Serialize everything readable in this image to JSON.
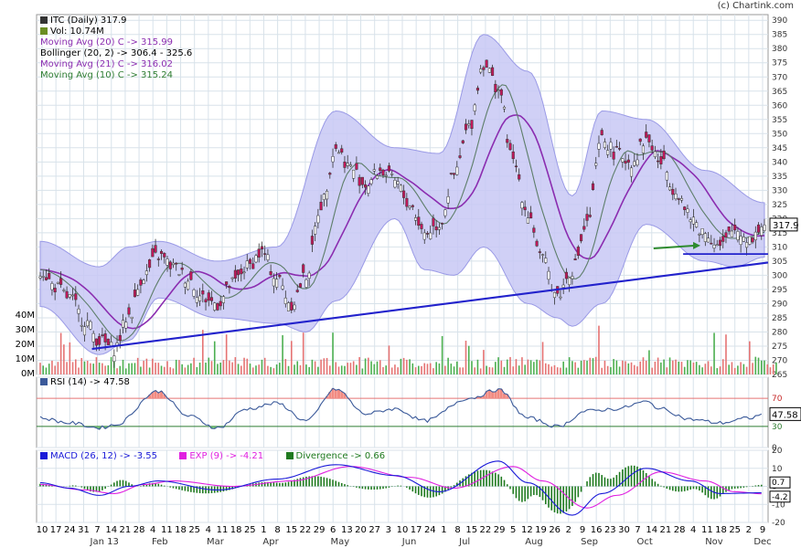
{
  "copyright": "(c) Chartink.com",
  "chart_data": [
    {
      "type": "candlestick",
      "title": "ITC (Daily) 317.9",
      "legend": [
        {
          "text": "ITC (Daily) 317.9",
          "color": "#000000"
        },
        {
          "text": "Vol: 10.74M",
          "color": "#000000"
        },
        {
          "text": "Moving Avg (20) C -> 315.99",
          "color": "#8b2db0"
        },
        {
          "text": "Bollinger (20, 2) -> 306.4 - 325.6",
          "color": "#000000"
        },
        {
          "text": "Moving Avg (21) C -> 316.02",
          "color": "#8b2db0"
        },
        {
          "text": "Moving Avg (10) C -> 315.24",
          "color": "#2e7d32"
        }
      ],
      "ylim": [
        265,
        392
      ],
      "yticks": [
        265,
        270,
        275,
        280,
        285,
        290,
        295,
        300,
        305,
        310,
        315,
        320,
        325,
        330,
        335,
        340,
        345,
        350,
        355,
        360,
        365,
        370,
        375,
        380,
        385,
        390
      ],
      "last_price_label": "317.9",
      "volume_axis_labels": [
        "40M",
        "30M",
        "20M",
        "10M",
        "0M"
      ],
      "volume_ylim": [
        0,
        40
      ],
      "x_tick_labels": [
        "10",
        "17",
        "24",
        "31",
        "7",
        "14",
        "21",
        "28",
        "4",
        "11",
        "18",
        "25",
        "4",
        "11",
        "18",
        "25",
        "1",
        "8",
        "15",
        "22",
        "29",
        "6",
        "13",
        "20",
        "27",
        "3",
        "10",
        "17",
        "24",
        "1",
        "8",
        "15",
        "22",
        "29",
        "5",
        "12",
        "19",
        "26",
        "2",
        "9",
        "16",
        "23",
        "30",
        "7",
        "14",
        "21",
        "28",
        "4",
        "11",
        "18",
        "25",
        "2",
        "9"
      ],
      "x_month_labels": [
        "Jan 13",
        "Feb",
        "Mar",
        "Apr",
        "May",
        "Jun",
        "Jul",
        "Aug",
        "Sep",
        "Oct",
        "Nov",
        "Dec"
      ],
      "weeks": 50,
      "close_keypoints": [
        [
          0,
          302
        ],
        [
          1,
          296
        ],
        [
          2,
          292
        ],
        [
          3,
          284
        ],
        [
          4,
          277
        ],
        [
          5,
          274
        ],
        [
          6,
          286
        ],
        [
          7,
          300
        ],
        [
          8,
          307
        ],
        [
          9,
          303
        ],
        [
          10,
          299
        ],
        [
          11,
          292
        ],
        [
          12,
          290
        ],
        [
          13,
          297
        ],
        [
          14,
          303
        ],
        [
          15,
          308
        ],
        [
          16,
          299
        ],
        [
          17,
          290
        ],
        [
          18,
          300
        ],
        [
          19,
          325
        ],
        [
          20,
          345
        ],
        [
          21,
          338
        ],
        [
          22,
          332
        ],
        [
          23,
          337
        ],
        [
          24,
          333
        ],
        [
          25,
          325
        ],
        [
          26,
          315
        ],
        [
          27,
          318
        ],
        [
          28,
          335
        ],
        [
          29,
          352
        ],
        [
          30,
          375
        ],
        [
          31,
          366
        ],
        [
          32,
          340
        ],
        [
          33,
          322
        ],
        [
          34,
          305
        ],
        [
          35,
          293
        ],
        [
          36,
          302
        ],
        [
          37,
          318
        ],
        [
          38,
          348
        ],
        [
          39,
          343
        ],
        [
          40,
          340
        ],
        [
          41,
          348
        ],
        [
          42,
          340
        ],
        [
          43,
          330
        ],
        [
          44,
          320
        ],
        [
          45,
          315
        ],
        [
          46,
          310
        ],
        [
          47,
          316
        ],
        [
          48,
          313
        ],
        [
          49,
          317.9
        ]
      ],
      "bollinger_upper_keypoints": [
        [
          0,
          312
        ],
        [
          4,
          303
        ],
        [
          6,
          310
        ],
        [
          8,
          312
        ],
        [
          12,
          305
        ],
        [
          16,
          310
        ],
        [
          20,
          358
        ],
        [
          24,
          345
        ],
        [
          27,
          343
        ],
        [
          30,
          385
        ],
        [
          33,
          372
        ],
        [
          36,
          328
        ],
        [
          38,
          358
        ],
        [
          41,
          355
        ],
        [
          45,
          337
        ],
        [
          49,
          325.6
        ]
      ],
      "bollinger_lower_keypoints": [
        [
          0,
          289
        ],
        [
          4,
          272
        ],
        [
          6,
          277
        ],
        [
          8,
          292
        ],
        [
          12,
          285
        ],
        [
          16,
          283
        ],
        [
          18,
          280
        ],
        [
          20,
          291
        ],
        [
          24,
          320
        ],
        [
          26,
          302
        ],
        [
          28,
          300
        ],
        [
          30,
          310
        ],
        [
          33,
          290
        ],
        [
          35,
          285
        ],
        [
          36,
          282
        ],
        [
          38,
          290
        ],
        [
          41,
          318
        ],
        [
          45,
          305
        ],
        [
          47,
          303
        ],
        [
          49,
          306.4
        ]
      ],
      "support_line": {
        "from": [
          3.5,
          274
        ],
        "to": [
          49.5,
          304.5
        ]
      },
      "horizontal_support": {
        "from": [
          39.5,
          307.5
        ],
        "to": [
          49.5,
          307.5
        ]
      },
      "arrow": {
        "from": [
          41.5,
          309.5
        ],
        "to": [
          44.3,
          310.5
        ]
      }
    },
    {
      "type": "line",
      "title": "RSI (14) -> 47.58",
      "ylim": [
        0,
        100
      ],
      "yticks": [
        0,
        30,
        70,
        100
      ],
      "ytick_labels": [
        "0",
        "30",
        "70"
      ],
      "last_value_label": "47.58",
      "overbought": 70,
      "oversold": 30,
      "keypoints": [
        [
          0,
          42
        ],
        [
          2,
          35
        ],
        [
          4,
          28
        ],
        [
          5,
          32
        ],
        [
          8,
          80
        ],
        [
          10,
          45
        ],
        [
          12,
          28
        ],
        [
          14,
          55
        ],
        [
          16,
          63
        ],
        [
          18,
          38
        ],
        [
          20,
          83
        ],
        [
          22,
          48
        ],
        [
          24,
          55
        ],
        [
          26,
          38
        ],
        [
          29,
          70
        ],
        [
          31,
          82
        ],
        [
          33,
          42
        ],
        [
          35,
          30
        ],
        [
          37,
          52
        ],
        [
          39,
          55
        ],
        [
          41,
          65
        ],
        [
          42,
          55
        ],
        [
          44,
          40
        ],
        [
          46,
          35
        ],
        [
          48,
          42
        ],
        [
          49,
          47.58
        ]
      ]
    },
    {
      "type": "line",
      "title": "MACD (26, 12) -> -3.55",
      "series": [
        {
          "name": "MACD (26, 12) -> -3.55",
          "color": "#1a1ad8",
          "keypoints": [
            [
              0,
              2
            ],
            [
              2,
              -1
            ],
            [
              4,
              -5
            ],
            [
              6,
              0
            ],
            [
              8,
              3
            ],
            [
              12,
              -2
            ],
            [
              16,
              4
            ],
            [
              20,
              12
            ],
            [
              24,
              6
            ],
            [
              27,
              -3
            ],
            [
              31,
              14
            ],
            [
              33,
              2
            ],
            [
              36,
              -16
            ],
            [
              38,
              -4
            ],
            [
              41,
              10
            ],
            [
              44,
              3
            ],
            [
              46,
              -4
            ],
            [
              49,
              -3.55
            ]
          ]
        },
        {
          "name": "EXP (9) -> -4.21",
          "color": "#e020e0",
          "keypoints": [
            [
              0,
              1
            ],
            [
              3,
              -2
            ],
            [
              5,
              -4
            ],
            [
              7,
              1
            ],
            [
              9,
              3
            ],
            [
              13,
              0
            ],
            [
              17,
              3
            ],
            [
              21,
              11
            ],
            [
              25,
              5
            ],
            [
              28,
              -1
            ],
            [
              32,
              11
            ],
            [
              34,
              3
            ],
            [
              37,
              -12
            ],
            [
              39,
              -5
            ],
            [
              42,
              8
            ],
            [
              45,
              3
            ],
            [
              47,
              -3
            ],
            [
              49,
              -4.21
            ]
          ]
        },
        {
          "name": "Divergence -> 0.66",
          "color": "#1f7a1f"
        }
      ],
      "ylim": [
        -20,
        20
      ],
      "yticks": [
        -20,
        -10,
        0,
        10,
        20
      ],
      "ytick_labels": [
        "-20",
        "-10",
        "0",
        "10",
        "20"
      ],
      "last_value_labels": [
        "0.7",
        "-4.2"
      ]
    }
  ]
}
